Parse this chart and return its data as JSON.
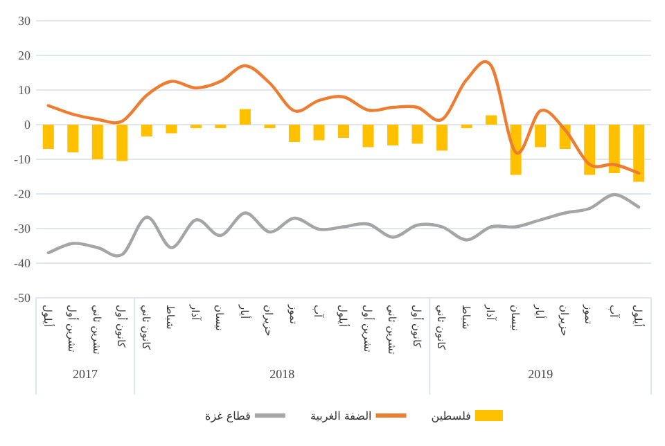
{
  "chart_data": {
    "type": "bar",
    "categories": [
      "أيلول",
      "تشرين أول",
      "تشرين ثاني",
      "كانون أول",
      "كانون ثاني",
      "شباط",
      "آذار",
      "نيسان",
      "أيار",
      "حزيران",
      "تموز",
      "آب",
      "أيلول",
      "تشرين أول",
      "تشرين ثاني",
      "كانون أول",
      "كانون ثاني",
      "شباط",
      "آذار",
      "نيسان",
      "أيار",
      "حزيران",
      "تموز",
      "آب",
      "أيلول"
    ],
    "series": [
      {
        "name": "فلسطين",
        "color": "#ffc000",
        "values": [
          -7,
          -8,
          -10,
          -10.5,
          -3.4,
          -2.5,
          -1,
          -1,
          4.5,
          -1,
          -5,
          -4.5,
          -3.8,
          -6.5,
          -6,
          -5.5,
          -7.5,
          -1,
          2.7,
          -14.5,
          -6.5,
          -7,
          -14.5,
          -14,
          -16.5
        ]
      },
      {
        "name": "الضفة الغربية",
        "type": "line",
        "color": "#ed7d31",
        "values": [
          5.5,
          3,
          1.5,
          1,
          8.5,
          12.5,
          10.6,
          12.5,
          17,
          12,
          4,
          7,
          8,
          4.2,
          5,
          5,
          1.5,
          13,
          17,
          -8,
          4,
          -1.5,
          -11.5,
          -11.5,
          -14
        ]
      },
      {
        "name": "قطاع غزة",
        "type": "line",
        "color": "#a5a5a5",
        "values": [
          -37,
          -34.3,
          -35.5,
          -37.5,
          -26.7,
          -35.5,
          -27.5,
          -32,
          -25.5,
          -31,
          -27,
          -30.2,
          -29.5,
          -28.7,
          -32.5,
          -29,
          -29.5,
          -33.3,
          -29.5,
          -29.5,
          -27.5,
          -25.5,
          -24.2,
          -20.2,
          -23.8
        ]
      }
    ],
    "ylim": [
      -50,
      30
    ],
    "yticks": [
      -50,
      -40,
      -30,
      -20,
      -10,
      0,
      10,
      20,
      30
    ],
    "grid": "y",
    "legend": "bottom",
    "annotations": [
      "2017",
      "2018",
      "2019"
    ]
  }
}
